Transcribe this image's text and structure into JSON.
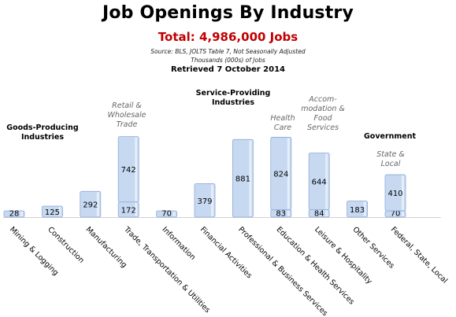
{
  "header": {
    "title": "Job Openings By Industry",
    "total": "Total:  4,986,000 Jobs",
    "source": "Source: BLS, JOLTS Table 7, Not Seasonally Adjusted",
    "units": "Thousands (000s) of Jobs",
    "retrieved": "Retrieved 7 October 2014"
  },
  "annotations": {
    "goods": "Goods-Producing Industries",
    "service": "Service-Providing Industries",
    "retail": "Retail & Wholesale Trade",
    "health": "Health Care",
    "accom": "Accom- modation & Food Services",
    "government": "Government",
    "state": "State & Local"
  },
  "colors": {
    "bar_fill": "#c6d9f1",
    "bar_stroke": "#8eaadb",
    "total_red": "#c00000",
    "annotation_gray": "#666666"
  },
  "chart_data": {
    "type": "bar",
    "stacked": true,
    "title": "Job Openings By Industry",
    "subtitle": "Total:  4,986,000 Jobs",
    "ylabel": "",
    "categories": [
      "Mining & Logging",
      "Construction",
      "Manufacturing",
      "Trade, Transportation & Utilities",
      "Information",
      "Financial Activities",
      "Professional & Business Services",
      "Education & Health Services",
      "Leisure & Hospitality",
      "Other Services",
      "Federal, State, Local"
    ],
    "series": [
      {
        "values": [
          28,
          125,
          292,
          172,
          70,
          379,
          881,
          83,
          84,
          183,
          70
        ]
      },
      {
        "values": [
          null,
          null,
          null,
          742,
          null,
          null,
          null,
          824,
          644,
          null,
          410
        ]
      }
    ],
    "ylim": [
      0,
      1000
    ],
    "grid": false,
    "legend": "none"
  }
}
